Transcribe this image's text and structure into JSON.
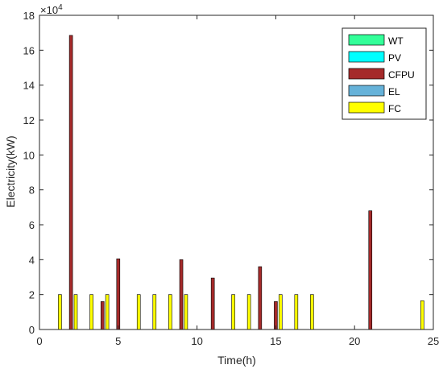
{
  "chart_data": {
    "type": "bar",
    "xlabel": "Time(h)",
    "ylabel": "Electricity(kW)",
    "y_multiplier_label": "×10",
    "y_multiplier_exponent": "4",
    "xlim": [
      0,
      25
    ],
    "ylim": [
      0,
      180000
    ],
    "x_ticks": [
      0,
      5,
      10,
      15,
      20,
      25
    ],
    "y_ticks": [
      0,
      20000,
      40000,
      60000,
      80000,
      100000,
      120000,
      140000,
      160000,
      180000
    ],
    "x_tick_labels": [
      "0",
      "5",
      "10",
      "15",
      "20",
      "25"
    ],
    "y_tick_labels": [
      "0",
      "2",
      "4",
      "6",
      "8",
      "10",
      "12",
      "14",
      "16",
      "18"
    ],
    "grid": false,
    "legend_position": "top-right",
    "series": [
      {
        "name": "WT",
        "color": "#33ff99",
        "points": []
      },
      {
        "name": "PV",
        "color": "#00ffff",
        "points": []
      },
      {
        "name": "CFPU",
        "color": "#a52a2a",
        "points": [
          {
            "x": 2,
            "y": 168500
          },
          {
            "x": 4,
            "y": 16000
          },
          {
            "x": 5,
            "y": 40500
          },
          {
            "x": 9,
            "y": 40000
          },
          {
            "x": 11,
            "y": 29500
          },
          {
            "x": 14,
            "y": 36000
          },
          {
            "x": 15,
            "y": 16000
          },
          {
            "x": 21,
            "y": 68000
          }
        ]
      },
      {
        "name": "EL",
        "color": "#66b2d9",
        "points": []
      },
      {
        "name": "FC",
        "color": "#ffff00",
        "points": [
          {
            "x": 1.3,
            "y": 20000
          },
          {
            "x": 2.3,
            "y": 20000
          },
          {
            "x": 3.3,
            "y": 20000
          },
          {
            "x": 4.3,
            "y": 20000
          },
          {
            "x": 6.3,
            "y": 20000
          },
          {
            "x": 7.3,
            "y": 20000
          },
          {
            "x": 8.3,
            "y": 20000
          },
          {
            "x": 9.3,
            "y": 20000
          },
          {
            "x": 12.3,
            "y": 20000
          },
          {
            "x": 13.3,
            "y": 20000
          },
          {
            "x": 15.3,
            "y": 20000
          },
          {
            "x": 16.3,
            "y": 20000
          },
          {
            "x": 17.3,
            "y": 20000
          },
          {
            "x": 24.3,
            "y": 16500
          }
        ]
      }
    ]
  }
}
